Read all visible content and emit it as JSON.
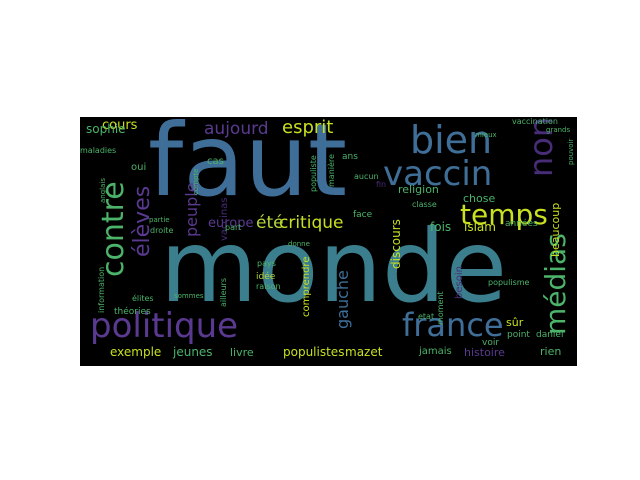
{
  "colors": {
    "background": "#000000",
    "page": "#ffffff",
    "teal": "#3b7f8e",
    "steel": "#3f6f98",
    "purple": "#472c78",
    "violet": "#5a3a90",
    "yellowgreen": "#b5d43a",
    "green": "#4cb36a",
    "lime": "#9ad33c",
    "olive": "#c8e020"
  },
  "words": [
    {
      "text": "faut",
      "color": "steel"
    },
    {
      "text": "monde",
      "color": "teal"
    },
    {
      "text": "politique",
      "color": "violet"
    },
    {
      "text": "contre",
      "color": "green"
    },
    {
      "text": "bien",
      "color": "steel"
    },
    {
      "text": "vaccin",
      "color": "steel"
    },
    {
      "text": "non",
      "color": "purple"
    },
    {
      "text": "temps",
      "color": "olive"
    },
    {
      "text": "france",
      "color": "steel"
    },
    {
      "text": "médias",
      "color": "green"
    },
    {
      "text": "élèves",
      "color": "violet"
    },
    {
      "text": "esprit",
      "color": "olive"
    },
    {
      "text": "aujourd",
      "color": "violet"
    },
    {
      "text": "peuple",
      "color": "violet"
    },
    {
      "text": "critique",
      "color": "olive"
    },
    {
      "text": "été",
      "color": "yellowgreen"
    },
    {
      "text": "gauche",
      "color": "steel"
    },
    {
      "text": "europe",
      "color": "violet"
    },
    {
      "text": "cours",
      "color": "olive"
    },
    {
      "text": "sophie",
      "color": "green"
    },
    {
      "text": "exemple",
      "color": "olive"
    },
    {
      "text": "jeunes",
      "color": "green"
    },
    {
      "text": "livre",
      "color": "green"
    },
    {
      "text": "populistes",
      "color": "olive"
    },
    {
      "text": "mazet",
      "color": "olive"
    },
    {
      "text": "histoire",
      "color": "violet"
    },
    {
      "text": "discours",
      "color": "olive"
    },
    {
      "text": "islam",
      "color": "olive"
    },
    {
      "text": "fois",
      "color": "green"
    },
    {
      "text": "chose",
      "color": "green"
    },
    {
      "text": "religion",
      "color": "green"
    },
    {
      "text": "beaucoup",
      "color": "olive"
    },
    {
      "text": "années",
      "color": "green"
    },
    {
      "text": "rien",
      "color": "green"
    },
    {
      "text": "jamais",
      "color": "green"
    },
    {
      "text": "daniel",
      "color": "green"
    },
    {
      "text": "point",
      "color": "green"
    },
    {
      "text": "sûr",
      "color": "olive"
    },
    {
      "text": "besoin",
      "color": "purple"
    },
    {
      "text": "voir",
      "color": "green"
    },
    {
      "text": "comprendre",
      "color": "olive"
    },
    {
      "text": "idée",
      "color": "yellowgreen"
    },
    {
      "text": "raison",
      "color": "green"
    },
    {
      "text": "ans",
      "color": "green"
    },
    {
      "text": "face",
      "color": "green"
    },
    {
      "text": "vaccinas",
      "color": "purple"
    },
    {
      "text": "vaccination",
      "color": "green"
    },
    {
      "text": "populisme",
      "color": "green"
    },
    {
      "text": "information",
      "color": "green"
    },
    {
      "text": "théories",
      "color": "green"
    },
    {
      "text": "élites",
      "color": "green"
    },
    {
      "text": "maladies",
      "color": "green"
    },
    {
      "text": "cas",
      "color": "green"
    },
    {
      "text": "oui",
      "color": "green"
    },
    {
      "text": "pays",
      "color": "green"
    },
    {
      "text": "part",
      "color": "green"
    },
    {
      "text": "droite",
      "color": "green"
    },
    {
      "text": "populiste",
      "color": "green"
    },
    {
      "text": "manière",
      "color": "green"
    },
    {
      "text": "classe",
      "color": "green"
    },
    {
      "text": "aucun",
      "color": "green"
    },
    {
      "text": "fin",
      "color": "purple"
    },
    {
      "text": "moment",
      "color": "green"
    },
    {
      "text": "etat",
      "color": "green"
    },
    {
      "text": "pouvoir",
      "color": "green"
    },
    {
      "text": "donne",
      "color": "green"
    },
    {
      "text": "mieux",
      "color": "green"
    },
    {
      "text": "compte",
      "color": "green"
    },
    {
      "text": "partie",
      "color": "green"
    },
    {
      "text": "sommes",
      "color": "green"
    },
    {
      "text": "ailleurs",
      "color": "green"
    },
    {
      "text": "anglais",
      "color": "green"
    },
    {
      "text": "grands",
      "color": "green"
    }
  ]
}
